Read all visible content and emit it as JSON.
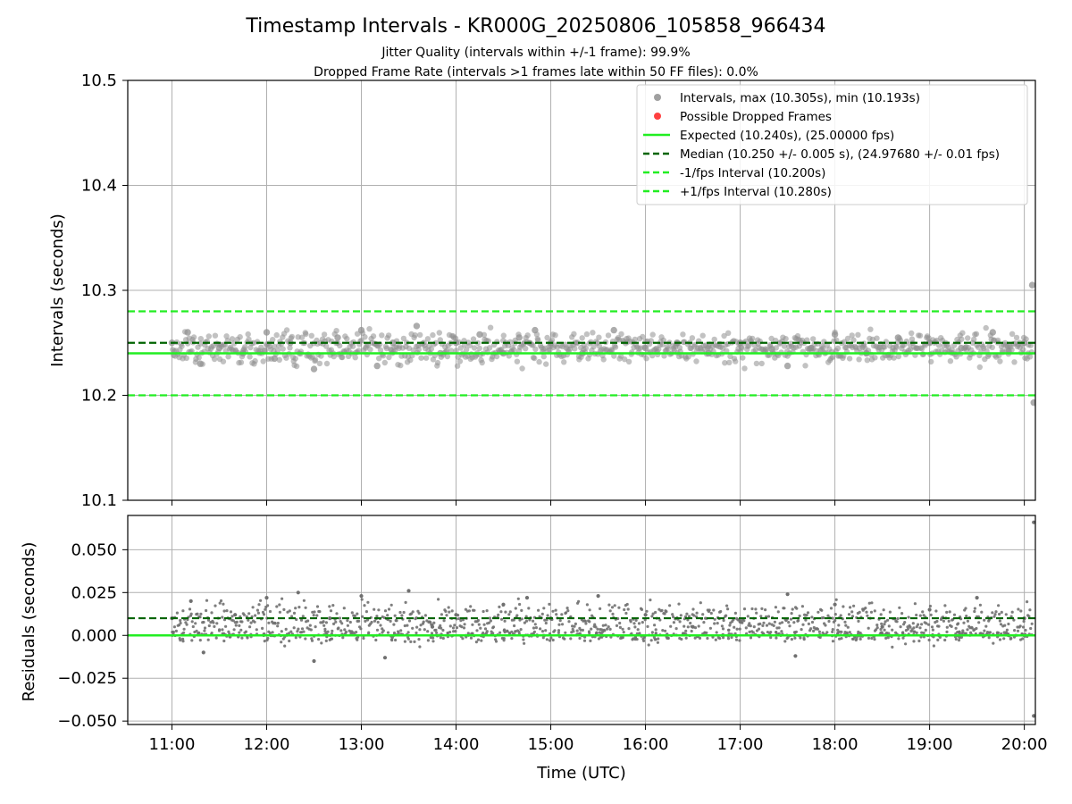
{
  "figure": {
    "title": "Timestamp Intervals - KR000G_20250806_105858_966434",
    "subtitle1": "Jitter Quality (intervals within +/-1 frame): 99.9%",
    "subtitle2": "Dropped Frame Rate (intervals >1 frames late within 50 FF files): 0.0%"
  },
  "colors": {
    "points": "#808080",
    "dropped": "#ff4040",
    "expected": "#22ee22",
    "median": "#006400",
    "bounds": "#22ee22",
    "grid": "#b0b0b0"
  },
  "chart_data": [
    {
      "type": "scatter",
      "ylabel": "Intervals (seconds)",
      "xlabel": "",
      "xlim": [
        "10:32",
        "20:07"
      ],
      "ylim": [
        10.1,
        10.5
      ],
      "yticks": [
        "10.1",
        "10.2",
        "10.3",
        "10.4",
        "10.5"
      ],
      "xticks": [
        "11:00",
        "12:00",
        "13:00",
        "14:00",
        "15:00",
        "16:00",
        "17:00",
        "18:00",
        "19:00",
        "20:00"
      ],
      "grid": true,
      "legend_position": "top-right",
      "legend": [
        {
          "label": "Intervals, max (10.305s), min (10.193s)",
          "kind": "marker",
          "color": "#a0a0a0"
        },
        {
          "label": "Possible Dropped Frames",
          "kind": "marker",
          "color": "#ff4040"
        },
        {
          "label": "Expected (10.240s), (25.00000 fps)",
          "kind": "solid",
          "color": "#22ee22"
        },
        {
          "label": "Median (10.250 +/- 0.005 s), (24.97680 +/- 0.01 fps)",
          "kind": "dashed",
          "color": "#006400"
        },
        {
          "label": "-1/fps Interval (10.200s)",
          "kind": "dashed",
          "color": "#22ee22"
        },
        {
          "label": "+1/fps Interval (10.280s)",
          "kind": "dashed",
          "color": "#22ee22"
        }
      ],
      "lines": {
        "expected": 10.24,
        "median": 10.25,
        "lower": 10.2,
        "upper": 10.28
      },
      "series": [
        {
          "name": "Intervals, max (10.305s), min (10.193s)",
          "x": [
            "11:00",
            "11:10",
            "11:18",
            "11:30",
            "11:45",
            "12:00",
            "12:05",
            "12:15",
            "12:30",
            "12:45",
            "13:00",
            "13:10",
            "13:20",
            "13:35",
            "13:50",
            "14:00",
            "14:15",
            "14:30",
            "14:40",
            "14:50",
            "15:00",
            "15:20",
            "15:40",
            "16:00",
            "16:20",
            "16:40",
            "17:00",
            "17:20",
            "17:30",
            "17:45",
            "18:00",
            "18:20",
            "18:40",
            "19:00",
            "19:20",
            "19:40",
            "19:50",
            "20:00",
            "20:05",
            "20:06"
          ],
          "y": [
            10.25,
            10.26,
            10.23,
            10.245,
            10.24,
            10.26,
            10.235,
            10.25,
            10.225,
            10.255,
            10.262,
            10.228,
            10.25,
            10.266,
            10.24,
            10.25,
            10.258,
            10.24,
            10.255,
            10.262,
            10.25,
            10.24,
            10.262,
            10.245,
            10.25,
            10.24,
            10.25,
            10.244,
            10.228,
            10.245,
            10.258,
            10.24,
            10.255,
            10.25,
            10.245,
            10.26,
            10.242,
            10.25,
            10.305,
            10.193
          ]
        },
        {
          "name": "Possible Dropped Frames",
          "x": [],
          "y": []
        }
      ]
    },
    {
      "type": "scatter",
      "ylabel": "Residuals (seconds)",
      "xlabel": "Time (UTC)",
      "xlim": [
        "10:32",
        "20:07"
      ],
      "ylim": [
        -0.052,
        0.07
      ],
      "yticks": [
        "−0.050",
        "−0.025",
        "0.000",
        "0.025",
        "0.050"
      ],
      "xticks": [
        "11:00",
        "12:00",
        "13:00",
        "14:00",
        "15:00",
        "16:00",
        "17:00",
        "18:00",
        "19:00",
        "20:00"
      ],
      "grid": true,
      "lines": {
        "expected": 0.0,
        "median": 0.01
      },
      "series": [
        {
          "name": "Residuals",
          "x": [
            "11:00",
            "11:12",
            "11:20",
            "11:40",
            "12:00",
            "12:20",
            "12:30",
            "12:40",
            "13:00",
            "13:15",
            "13:30",
            "13:45",
            "14:00",
            "14:30",
            "14:45",
            "15:00",
            "15:30",
            "16:00",
            "16:30",
            "17:00",
            "17:30",
            "17:35",
            "18:00",
            "18:30",
            "19:00",
            "19:30",
            "20:00",
            "20:06",
            "20:06"
          ],
          "y": [
            0.01,
            0.02,
            -0.01,
            0.012,
            0.022,
            0.025,
            -0.015,
            0.01,
            0.023,
            -0.013,
            0.026,
            0.005,
            0.012,
            0.018,
            0.022,
            0.01,
            0.023,
            0.012,
            0.005,
            0.008,
            0.024,
            -0.012,
            0.018,
            0.005,
            0.015,
            0.022,
            0.01,
            0.066,
            -0.047
          ]
        }
      ]
    }
  ]
}
